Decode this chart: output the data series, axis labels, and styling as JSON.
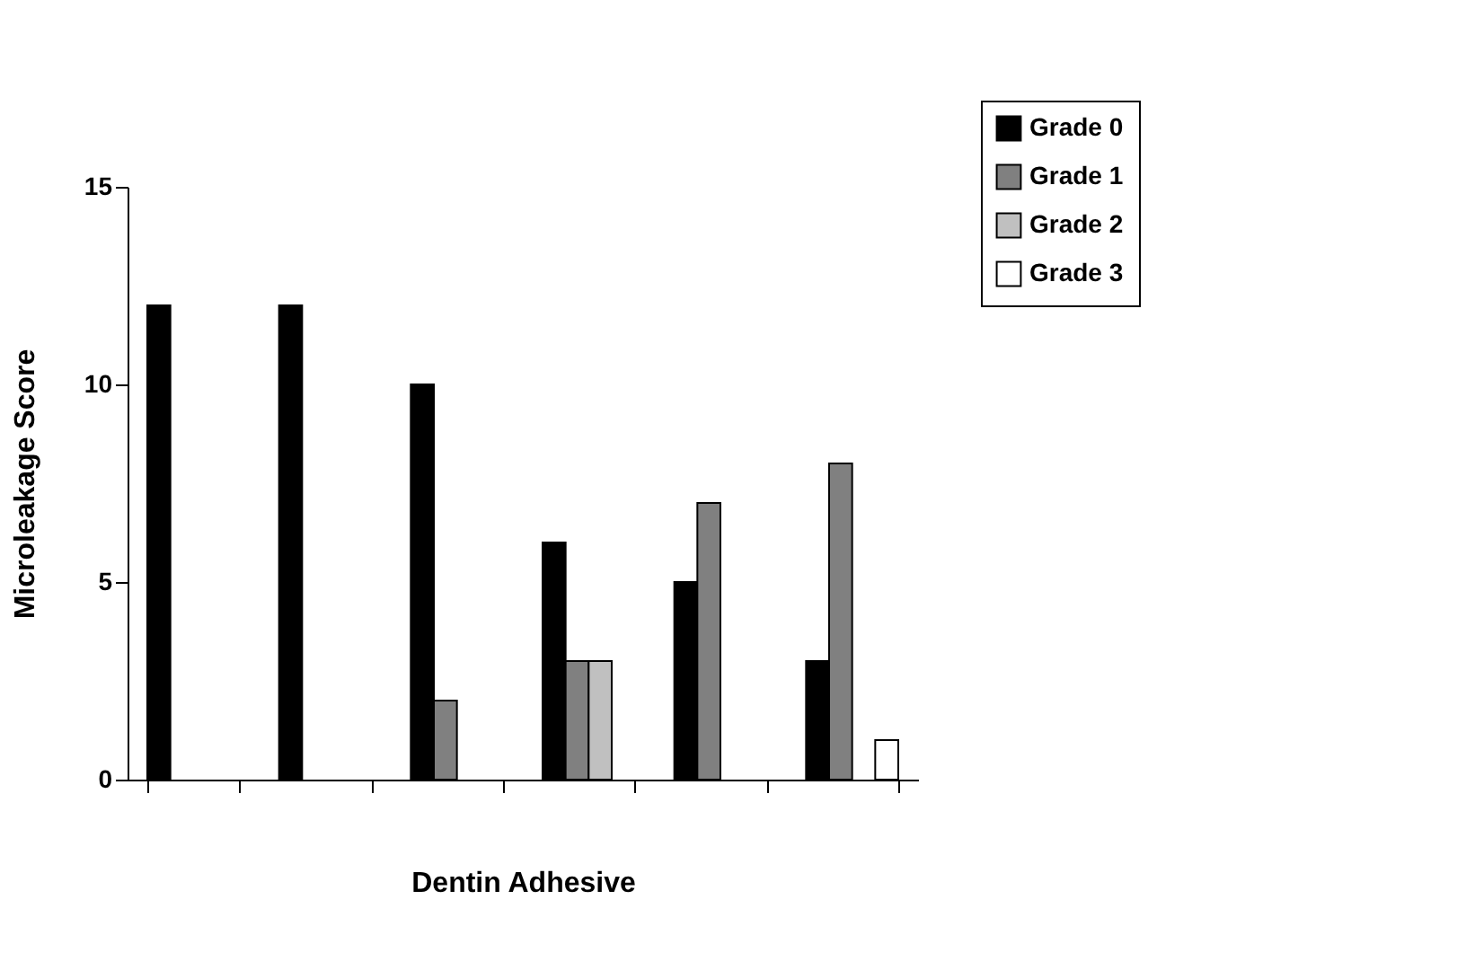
{
  "chart_data": {
    "type": "bar",
    "xlabel": "Dentin Adhesive",
    "ylabel": "Microleakage Score",
    "categories": [
      null,
      null,
      null,
      null,
      null,
      null
    ],
    "series": [
      {
        "name": "Grade 0",
        "color": "#000000",
        "values": [
          12,
          12,
          10,
          6,
          5,
          3
        ]
      },
      {
        "name": "Grade 1",
        "color": "#808080",
        "values": [
          0,
          0,
          2,
          3,
          7,
          8
        ]
      },
      {
        "name": "Grade 2",
        "color": "#c0c0c0",
        "values": [
          0,
          0,
          0,
          3,
          0,
          0
        ]
      },
      {
        "name": "Grade 3",
        "color": "#ffffff",
        "values": [
          0,
          0,
          0,
          0,
          0,
          1
        ]
      }
    ],
    "ylim": [
      0,
      15
    ],
    "yticks": [
      0,
      5,
      10,
      15
    ],
    "grid": false,
    "legend": "top right"
  }
}
